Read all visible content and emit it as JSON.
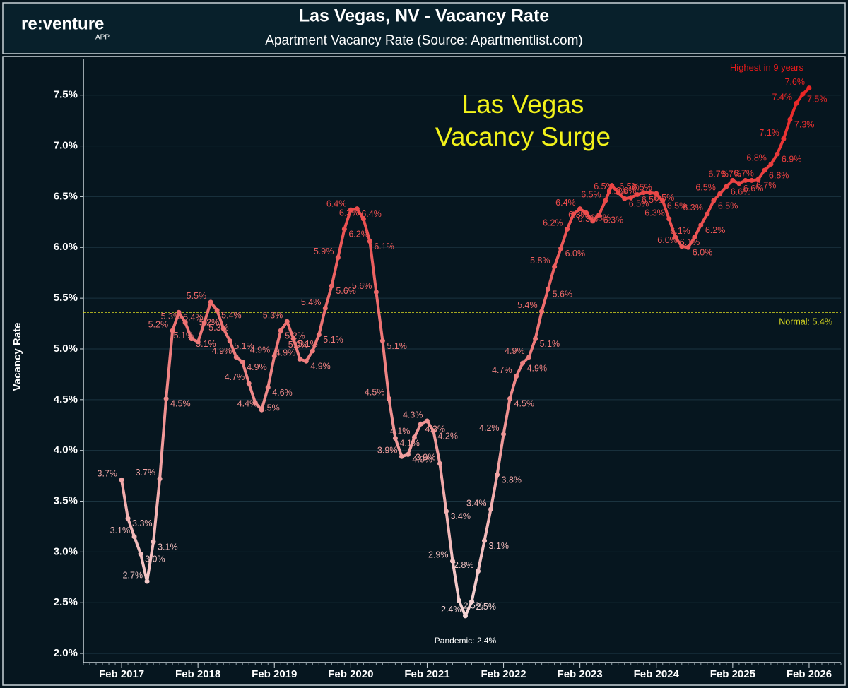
{
  "logo": {
    "name": "re:venture",
    "sub": "APP"
  },
  "chart_data": {
    "type": "line",
    "title": "Las Vegas, NV - Vacancy Rate",
    "subtitle": "Apartment Vacancy Rate (Source: Apartmentlist.com)",
    "y_label": "Vacancy Rate",
    "annotation_big": [
      "Las Vegas",
      "Vacancy Surge"
    ],
    "annotation_peak": "Highest in 9 years",
    "annotation_low": "Pandemic: 2.4%",
    "reference": {
      "value": 5.36,
      "label": "Normal: 5.4%",
      "color": "#d8d820"
    },
    "color_scale": [
      "#f6e4e4",
      "#e81a1a"
    ],
    "grid": true,
    "xlim": [
      "2016-08",
      "2026-07"
    ],
    "xticks": [
      {
        "value": "2017-02",
        "label": "Feb 2017"
      },
      {
        "value": "2018-02",
        "label": "Feb 2018"
      },
      {
        "value": "2019-02",
        "label": "Feb 2019"
      },
      {
        "value": "2020-02",
        "label": "Feb 2020"
      },
      {
        "value": "2021-02",
        "label": "Feb 2021"
      },
      {
        "value": "2022-02",
        "label": "Feb 2022"
      },
      {
        "value": "2023-02",
        "label": "Feb 2023"
      },
      {
        "value": "2024-02",
        "label": "Feb 2024"
      },
      {
        "value": "2025-02",
        "label": "Feb 2025"
      },
      {
        "value": "2026-02",
        "label": "Feb 2026"
      }
    ],
    "ylim": [
      1.91,
      7.86
    ],
    "yticks": [
      {
        "value": 2.0,
        "label": "2.0%"
      },
      {
        "value": 2.5,
        "label": "2.5%"
      },
      {
        "value": 3.0,
        "label": "3.0%"
      },
      {
        "value": 3.5,
        "label": "3.5%"
      },
      {
        "value": 4.0,
        "label": "4.0%"
      },
      {
        "value": 4.5,
        "label": "4.5%"
      },
      {
        "value": 5.0,
        "label": "5.0%"
      },
      {
        "value": 5.5,
        "label": "5.5%"
      },
      {
        "value": 6.0,
        "label": "6.0%"
      },
      {
        "value": 6.5,
        "label": "6.5%"
      },
      {
        "value": 7.0,
        "label": "7.0%"
      },
      {
        "value": 7.5,
        "label": "7.5%"
      }
    ],
    "x": [
      "2017-02",
      "2017-03",
      "2017-04",
      "2017-05",
      "2017-06",
      "2017-07",
      "2017-08",
      "2017-09",
      "2017-10",
      "2017-11",
      "2017-12",
      "2018-01",
      "2018-02",
      "2018-03",
      "2018-04",
      "2018-05",
      "2018-06",
      "2018-07",
      "2018-08",
      "2018-09",
      "2018-10",
      "2018-11",
      "2018-12",
      "2019-01",
      "2019-02",
      "2019-03",
      "2019-04",
      "2019-05",
      "2019-06",
      "2019-07",
      "2019-08",
      "2019-09",
      "2019-10",
      "2019-11",
      "2019-12",
      "2020-01",
      "2020-02",
      "2020-03",
      "2020-04",
      "2020-05",
      "2020-06",
      "2020-07",
      "2020-08",
      "2020-09",
      "2020-10",
      "2020-11",
      "2020-12",
      "2021-01",
      "2021-02",
      "2021-03",
      "2021-04",
      "2021-05",
      "2021-06",
      "2021-07",
      "2021-08",
      "2021-09",
      "2021-10",
      "2021-11",
      "2021-12",
      "2022-01",
      "2022-02",
      "2022-03",
      "2022-04",
      "2022-05",
      "2022-06",
      "2022-07",
      "2022-08",
      "2022-09",
      "2022-10",
      "2022-11",
      "2022-12",
      "2023-01",
      "2023-02",
      "2023-03",
      "2023-04",
      "2023-05",
      "2023-06",
      "2023-07",
      "2023-08",
      "2023-09",
      "2023-10",
      "2023-11",
      "2023-12",
      "2024-01",
      "2024-02",
      "2024-03",
      "2024-04",
      "2024-05",
      "2024-06",
      "2024-07",
      "2024-08",
      "2024-09",
      "2024-10",
      "2024-11",
      "2024-12",
      "2025-01",
      "2025-02",
      "2025-03",
      "2025-04",
      "2025-05",
      "2025-06",
      "2025-07",
      "2025-08",
      "2025-09",
      "2025-10",
      "2025-11",
      "2025-12",
      "2026-01",
      "2026-02"
    ],
    "values": [
      3.71,
      3.33,
      3.15,
      2.98,
      2.71,
      3.1,
      3.72,
      4.51,
      5.18,
      5.36,
      5.26,
      5.1,
      5.07,
      5.26,
      5.46,
      5.38,
      5.2,
      5.08,
      4.92,
      4.87,
      4.66,
      4.47,
      4.4,
      4.62,
      4.93,
      5.18,
      5.27,
      5.1,
      4.9,
      4.88,
      4.98,
      5.14,
      5.4,
      5.62,
      5.9,
      6.18,
      6.37,
      6.38,
      6.28,
      6.06,
      5.56,
      5.08,
      4.51,
      4.12,
      3.94,
      3.96,
      4.13,
      4.26,
      4.29,
      4.19,
      3.87,
      3.4,
      2.91,
      2.52,
      2.37,
      2.51,
      2.81,
      3.11,
      3.42,
      3.76,
      4.16,
      4.51,
      4.73,
      4.86,
      4.92,
      5.1,
      5.37,
      5.59,
      5.81,
      5.99,
      6.18,
      6.33,
      6.38,
      6.34,
      6.26,
      6.32,
      6.46,
      6.61,
      6.54,
      6.48,
      6.49,
      6.52,
      6.54,
      6.54,
      6.53,
      6.46,
      6.28,
      6.1,
      6.01,
      6.0,
      6.1,
      6.22,
      6.33,
      6.46,
      6.53,
      6.6,
      6.66,
      6.63,
      6.66,
      6.66,
      6.67,
      6.76,
      6.82,
      6.92,
      7.07,
      7.26,
      7.42,
      7.51,
      7.57
    ],
    "value_labels": [
      "3.7%",
      "3.3%",
      "3.1%",
      "3.0%",
      "2.7%",
      "3.1%",
      "3.7%",
      "4.5%",
      "5.2%",
      "5.4%",
      "5.3%",
      "5.1%",
      "5.1%",
      "5.3%",
      "5.5%",
      "5.4%",
      "5.2%",
      "5.1%",
      "4.9%",
      "4.9%",
      "4.7%",
      "4.5%",
      "4.4%",
      "4.6%",
      "4.9%",
      "5.2%",
      "5.3%",
      "5.1%",
      "4.9%",
      "4.9%",
      "5.0%",
      "5.1%",
      "5.4%",
      "5.6%",
      "5.9%",
      "6.2%",
      "6.4%",
      "6.4%",
      "6.3%",
      "6.1%",
      "5.6%",
      "5.1%",
      "4.5%",
      "4.1%",
      "3.9%",
      "4.0%",
      "4.1%",
      "4.3%",
      "4.3%",
      "4.2%",
      "3.9%",
      "3.4%",
      "2.9%",
      "2.5%",
      "2.4%",
      "2.5%",
      "2.8%",
      "3.1%",
      "3.4%",
      "3.8%",
      "4.2%",
      "4.5%",
      "4.7%",
      "4.9%",
      "4.9%",
      "5.1%",
      "5.4%",
      "5.6%",
      "5.8%",
      "6.0%",
      "6.2%",
      "6.3%",
      "6.4%",
      "6.3%",
      "6.3%",
      "6.3%",
      "6.5%",
      "6.6%",
      "6.5%",
      "6.5%",
      "6.5%",
      "6.5%",
      "6.5%",
      "6.5%",
      "6.5%",
      "6.5%",
      "6.3%",
      "6.1%",
      "6.0%",
      "6.0%",
      "6.1%",
      "6.2%",
      "6.3%",
      "6.5%",
      "6.5%",
      "6.6%",
      "6.7%",
      "6.6%",
      "6.7%",
      "6.7%",
      "6.7%",
      "6.8%",
      "6.8%",
      "6.9%",
      "7.1%",
      "7.3%",
      "7.4%",
      "7.5%",
      "7.6%"
    ]
  }
}
